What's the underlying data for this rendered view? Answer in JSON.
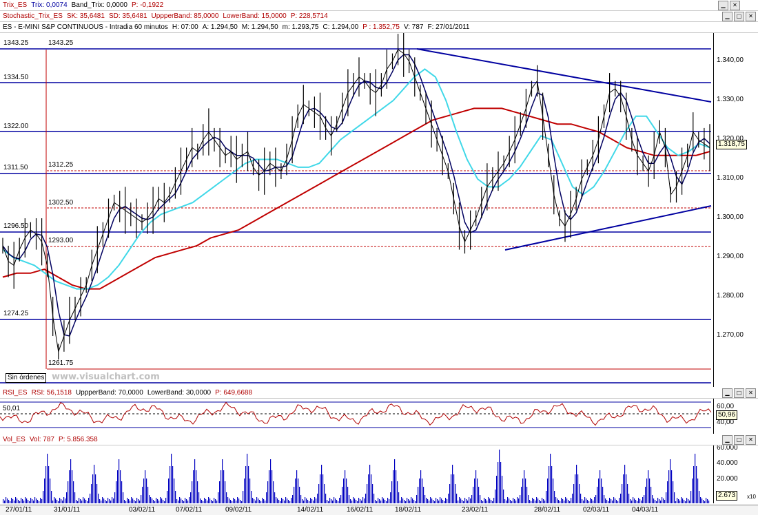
{
  "headers": {
    "trix": {
      "name": "Trix_ES",
      "trix": "Trix: 0,0074",
      "band": "Band_Trix: 0,0000",
      "p": "P: -0,1922"
    },
    "stoch": {
      "name": "Stochastic_Trix_ES",
      "sk": "SK: 35,6481",
      "sd": "SD: 35,6481",
      "upper": "UppperBand: 85,0000",
      "lower": "LowerBand: 15,0000",
      "p": "P: 228,5714"
    },
    "main": {
      "title": "ES - E-MINI S&P CONTINUOUS - Intradia 60 minutos",
      "h": "H: 07:00",
      "a": "A: 1.294,50",
      "m": "M: 1.294,50",
      "mm": "m: 1.293,75",
      "c": "C: 1.294,00",
      "p": "P : 1.352,75",
      "v": "V: 787",
      "f": "F: 27/01/2011"
    },
    "rsi": {
      "name": "RSI_ES",
      "rsi": "RSI: 56,1518",
      "upper": "UppperBand: 70,0000",
      "lower": "LowerBand: 30,0000",
      "p": "P: 649,6688"
    },
    "vol": {
      "name": "Vol_ES",
      "vol": "Vol: 787",
      "p": "P: 5.856.358"
    }
  },
  "price_levels": {
    "l1343": "1343.25",
    "l1343b": "1343.25",
    "l1334": "1334.50",
    "l1322": "1322.00",
    "l1311": "1311.50",
    "l1312": "1312.25",
    "l1302": "1302.50",
    "l1296": "1296.50",
    "l1293": "1293.00",
    "l1274": "1274.25",
    "l1261": "1261.75"
  },
  "main_axis": {
    "ticks": [
      "1.340,00",
      "1.330,00",
      "1.320,00",
      "1.310,00",
      "1.300,00",
      "1.290,00",
      "1.280,00",
      "1.270,00"
    ],
    "current": "1.318,75"
  },
  "rsi_axis": {
    "ticks": [
      "60,00",
      "40,00"
    ],
    "current": "50,96",
    "left_label": "50,01"
  },
  "vol_axis": {
    "ticks": [
      "60.000",
      "40.000",
      "20.000"
    ],
    "current": "2.673",
    "scale": "x10"
  },
  "dates": [
    "27/01/11",
    "31/01/11",
    "03/02/11",
    "07/02/11",
    "09/02/11",
    "14/02/11",
    "16/02/11",
    "18/02/11",
    "23/02/11",
    "28/02/11",
    "02/03/11",
    "04/03/11"
  ],
  "misc": {
    "sin_ordenes": "Sin órdenes",
    "watermark": "www.visualchart.com"
  },
  "window_buttons": [
    "minimize-icon",
    "maximize-icon",
    "close-icon"
  ],
  "colors": {
    "price": "#000000",
    "ma_fast": "#000060",
    "ma_cyan": "#40d8e8",
    "ma_slow": "#c00000",
    "levels": "#0000a0",
    "rsi": "#b00000",
    "volume": "#0000c0"
  },
  "chart_data": {
    "type": "line",
    "ylim": [
      1258,
      1346
    ],
    "series_note": "",
    "close": [
      1293,
      1289,
      1288,
      1292,
      1295,
      1297,
      1296,
      1294,
      1288,
      1275,
      1266,
      1270,
      1274,
      1277,
      1280,
      1283,
      1288,
      1292,
      1296,
      1300,
      1304,
      1303,
      1302,
      1301,
      1300,
      1299,
      1300,
      1302,
      1305,
      1304,
      1306,
      1309,
      1312,
      1315,
      1318,
      1317,
      1320,
      1322,
      1320,
      1318,
      1316,
      1317,
      1315,
      1316,
      1317,
      1313,
      1311,
      1312,
      1314,
      1313,
      1312,
      1315,
      1320,
      1326,
      1329,
      1328,
      1327,
      1326,
      1323,
      1321,
      1324,
      1328,
      1332,
      1334,
      1336,
      1335,
      1333,
      1332,
      1334,
      1338,
      1340,
      1343,
      1342,
      1340,
      1336,
      1332,
      1328,
      1324,
      1320,
      1316,
      1312,
      1305,
      1298,
      1294,
      1297,
      1300,
      1304,
      1308,
      1310,
      1312,
      1314,
      1317,
      1320,
      1324,
      1328,
      1333,
      1335,
      1326,
      1316,
      1306,
      1300,
      1298,
      1301,
      1305,
      1310,
      1313,
      1316,
      1320,
      1326,
      1332,
      1333,
      1331,
      1326,
      1320,
      1316,
      1314,
      1312,
      1316,
      1322,
      1318,
      1306,
      1308,
      1312,
      1316,
      1322,
      1320,
      1319,
      1318
    ],
    "ma_cyan": [
      1292,
      1290,
      1289,
      1288,
      1286,
      1284,
      1283,
      1282,
      1282,
      1283,
      1285,
      1288,
      1292,
      1296,
      1299,
      1301,
      1302,
      1303,
      1304,
      1306,
      1308,
      1310,
      1312,
      1314,
      1315,
      1315,
      1315,
      1314,
      1313,
      1313,
      1314,
      1317,
      1320,
      1322,
      1324,
      1326,
      1328,
      1330,
      1333,
      1336,
      1338,
      1336,
      1330,
      1322,
      1315,
      1310,
      1308,
      1308,
      1310,
      1313,
      1317,
      1321,
      1320,
      1314,
      1308,
      1306,
      1308,
      1312,
      1317,
      1322,
      1326,
      1326,
      1322,
      1318,
      1316,
      1317,
      1319,
      1318
    ],
    "ma_slow": [
      1285,
      1286,
      1286,
      1287,
      1285,
      1283,
      1282,
      1282,
      1284,
      1286,
      1288,
      1290,
      1291,
      1292,
      1293,
      1295,
      1296,
      1297,
      1299,
      1301,
      1303,
      1305,
      1307,
      1309,
      1311,
      1313,
      1315,
      1317,
      1319,
      1321,
      1323,
      1325,
      1326,
      1327,
      1328,
      1328,
      1328,
      1327,
      1326,
      1325,
      1324,
      1324,
      1323,
      1322,
      1320,
      1318,
      1317,
      1316,
      1316,
      1316,
      1316,
      1317
    ]
  }
}
